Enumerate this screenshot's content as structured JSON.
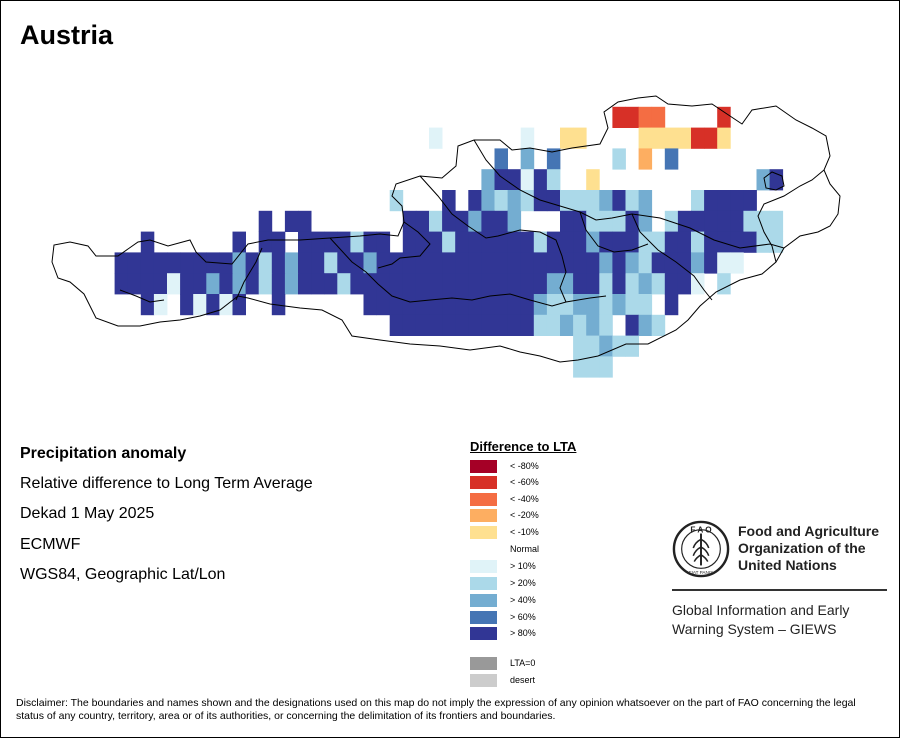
{
  "map": {
    "title": "Austria",
    "info_lines": [
      "Precipitation anomaly",
      "Relative difference to Long Term Average",
      "Dekad 1 May 2025",
      "ECMWF",
      "WGS84, Geographic Lat/Lon"
    ]
  },
  "legend": {
    "title": "Difference to LTA",
    "items": [
      {
        "label": "< -80%",
        "color": "#a50026"
      },
      {
        "label": "< -60%",
        "color": "#d73027"
      },
      {
        "label": "< -40%",
        "color": "#f46d43"
      },
      {
        "label": "< -20%",
        "color": "#fdae61"
      },
      {
        "label": "< -10%",
        "color": "#fee090"
      },
      {
        "label": "Normal",
        "color": "#ffffff"
      },
      {
        "label": "> 10%",
        "color": "#e0f3f8"
      },
      {
        "label": "> 20%",
        "color": "#abd9e9"
      },
      {
        "label": "> 40%",
        "color": "#74add1"
      },
      {
        "label": "> 60%",
        "color": "#4575b4"
      },
      {
        "label": "> 80%",
        "color": "#313695"
      },
      {
        "label": "LTA=0",
        "color": "#999999"
      },
      {
        "label": "desert",
        "color": "#cccccc"
      }
    ]
  },
  "org": {
    "name_line1": "Food and Agriculture",
    "name_line2": "Organization of the",
    "name_line3": "United Nations",
    "system_line1": "Global Information and Early",
    "system_line2": "Warning System – GIEWS",
    "logo_letters": "F A O",
    "logo_motto": "FIAT PANIS"
  },
  "disclaimer": "Disclaimer: The boundaries and names shown and the designations used on this map do not imply the expression of any opinion whatsoever on the part of FAO concerning the legal status of any country, territory, area or of its authorities, or concerning the delimitation of its frontiers and boundaries.",
  "grid_rows": [
    "..........................................................",
    "............................................2233....2.....",
    "..............................7......7..55....5555225.....",
    "...................................6.9.6....8.4.6..........",
    "..................................9AA7A8..5............9A..",
    "...........................8...ABA9898AA8889A89...8AAAA...",
    ".................A.AA.......AA8AA9AA9...AA888A9.8AAAAA888..",
    "........A......A.AA.AAAA8AA.AAA8AAAAAA8AAA9AAA88AA8AAAA88..",
    "......AAAAAAAAA9A8A9AA8AA9AAAAAAAAAAAAAAAAA9A98AAA9A77.....",
    "......AAAA7AA9A9A8A9AAA8AAAAAAAAAAAAAAA99AA8A898AA7.8......",
    "........A7.A7A7A..A......AAAAAAAAAAAAA988998988.A..........",
    "...........................AAAAAAAAAAA889898.A98...........",
    ".........................................88988.............",
    ".........................................888..............."
  ]
}
